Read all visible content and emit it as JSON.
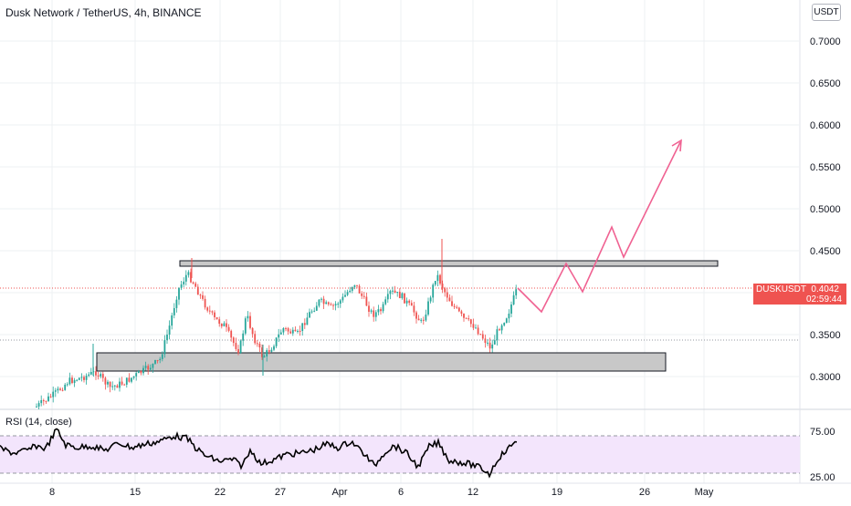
{
  "header": {
    "title": "Dusk Network / TetherUS, 4h, BINANCE",
    "currency_button": "USDT"
  },
  "price_axis": {
    "labels": [
      "0.7000",
      "0.6500",
      "0.6000",
      "0.5500",
      "0.5000",
      "0.4500",
      "0.3500",
      "0.3000"
    ]
  },
  "price_tag": {
    "symbol": "DUSKUSDT",
    "price": "0.4042",
    "countdown": "02:59:44",
    "color": "#ef5350"
  },
  "rsi": {
    "title": "RSI (14, close)",
    "upper_label": "75.00",
    "lower_label": "25.00",
    "band_color": "#f3e5fc"
  },
  "time_axis": {
    "labels": [
      "8",
      "15",
      "22",
      "27",
      "Apr",
      "6",
      "12",
      "19",
      "26",
      "May"
    ]
  },
  "colors": {
    "up": "#26a69a",
    "down": "#ef5350",
    "projection": "#f06292",
    "zone_fill": "#c8c8c8"
  }
}
